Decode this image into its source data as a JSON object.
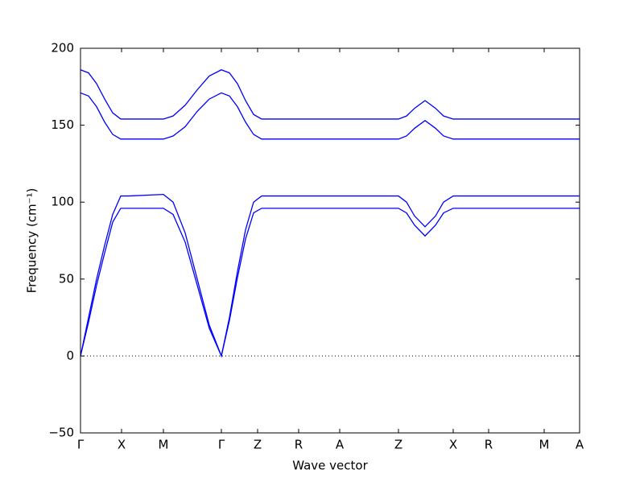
{
  "chart_data": {
    "type": "line",
    "xlabel": "Wave vector",
    "ylabel": "Frequency (cm⁻¹)",
    "x": [
      0,
      0.1,
      0.2,
      0.3,
      0.4,
      0.5,
      0.6,
      1.03,
      1.15,
      1.3,
      1.45,
      1.6,
      1.75,
      1.85,
      1.95,
      2.05,
      2.15,
      2.25,
      3.95,
      4.05,
      4.15,
      4.28,
      4.41,
      4.51,
      4.63,
      6.2
    ],
    "series": [
      {
        "color": "#0000ff",
        "values": [
          186,
          184,
          177,
          167,
          158,
          154,
          154,
          154,
          156,
          163,
          173,
          182,
          186,
          184,
          177,
          166,
          157,
          154,
          154,
          156,
          161,
          166,
          161,
          156,
          154,
          154
        ]
      },
      {
        "color": "#0000ff",
        "values": [
          171,
          169,
          162,
          152,
          144,
          141,
          141,
          141,
          143,
          149,
          159,
          167,
          171,
          169,
          162,
          152,
          144,
          141,
          141,
          143,
          148,
          153,
          148,
          143,
          141,
          141
        ]
      },
      {
        "color": "#0000ff",
        "values": [
          0,
          25,
          50,
          72,
          92,
          104,
          104,
          105,
          100,
          80,
          50,
          20,
          0,
          25,
          55,
          82,
          100,
          104,
          104,
          100,
          91,
          84,
          91,
          100,
          104,
          104
        ]
      },
      {
        "color": "#0000ff",
        "values": [
          0,
          22,
          46,
          67,
          87,
          96,
          96,
          96,
          92,
          74,
          46,
          18,
          0,
          23,
          51,
          76,
          93,
          96,
          96,
          93,
          85,
          78,
          85,
          93,
          96,
          96
        ]
      }
    ],
    "xlim": [
      0,
      6.2
    ],
    "xticks": [
      {
        "value": 0,
        "label": "Γ"
      },
      {
        "value": 0.51,
        "label": "X"
      },
      {
        "value": 1.03,
        "label": "M"
      },
      {
        "value": 1.75,
        "label": "Γ"
      },
      {
        "value": 2.2,
        "label": "Z"
      },
      {
        "value": 2.71,
        "label": "R"
      },
      {
        "value": 3.22,
        "label": "A"
      },
      {
        "value": 3.95,
        "label": "Z"
      },
      {
        "value": 4.63,
        "label": "X"
      },
      {
        "value": 5.07,
        "label": "R"
      },
      {
        "value": 5.76,
        "label": "M"
      },
      {
        "value": 6.2,
        "label": "A"
      }
    ],
    "ylim": [
      -50,
      200
    ],
    "yticks": [
      {
        "value": -50,
        "label": "−50"
      },
      0,
      50,
      100,
      150,
      200
    ],
    "zero_line": true
  }
}
